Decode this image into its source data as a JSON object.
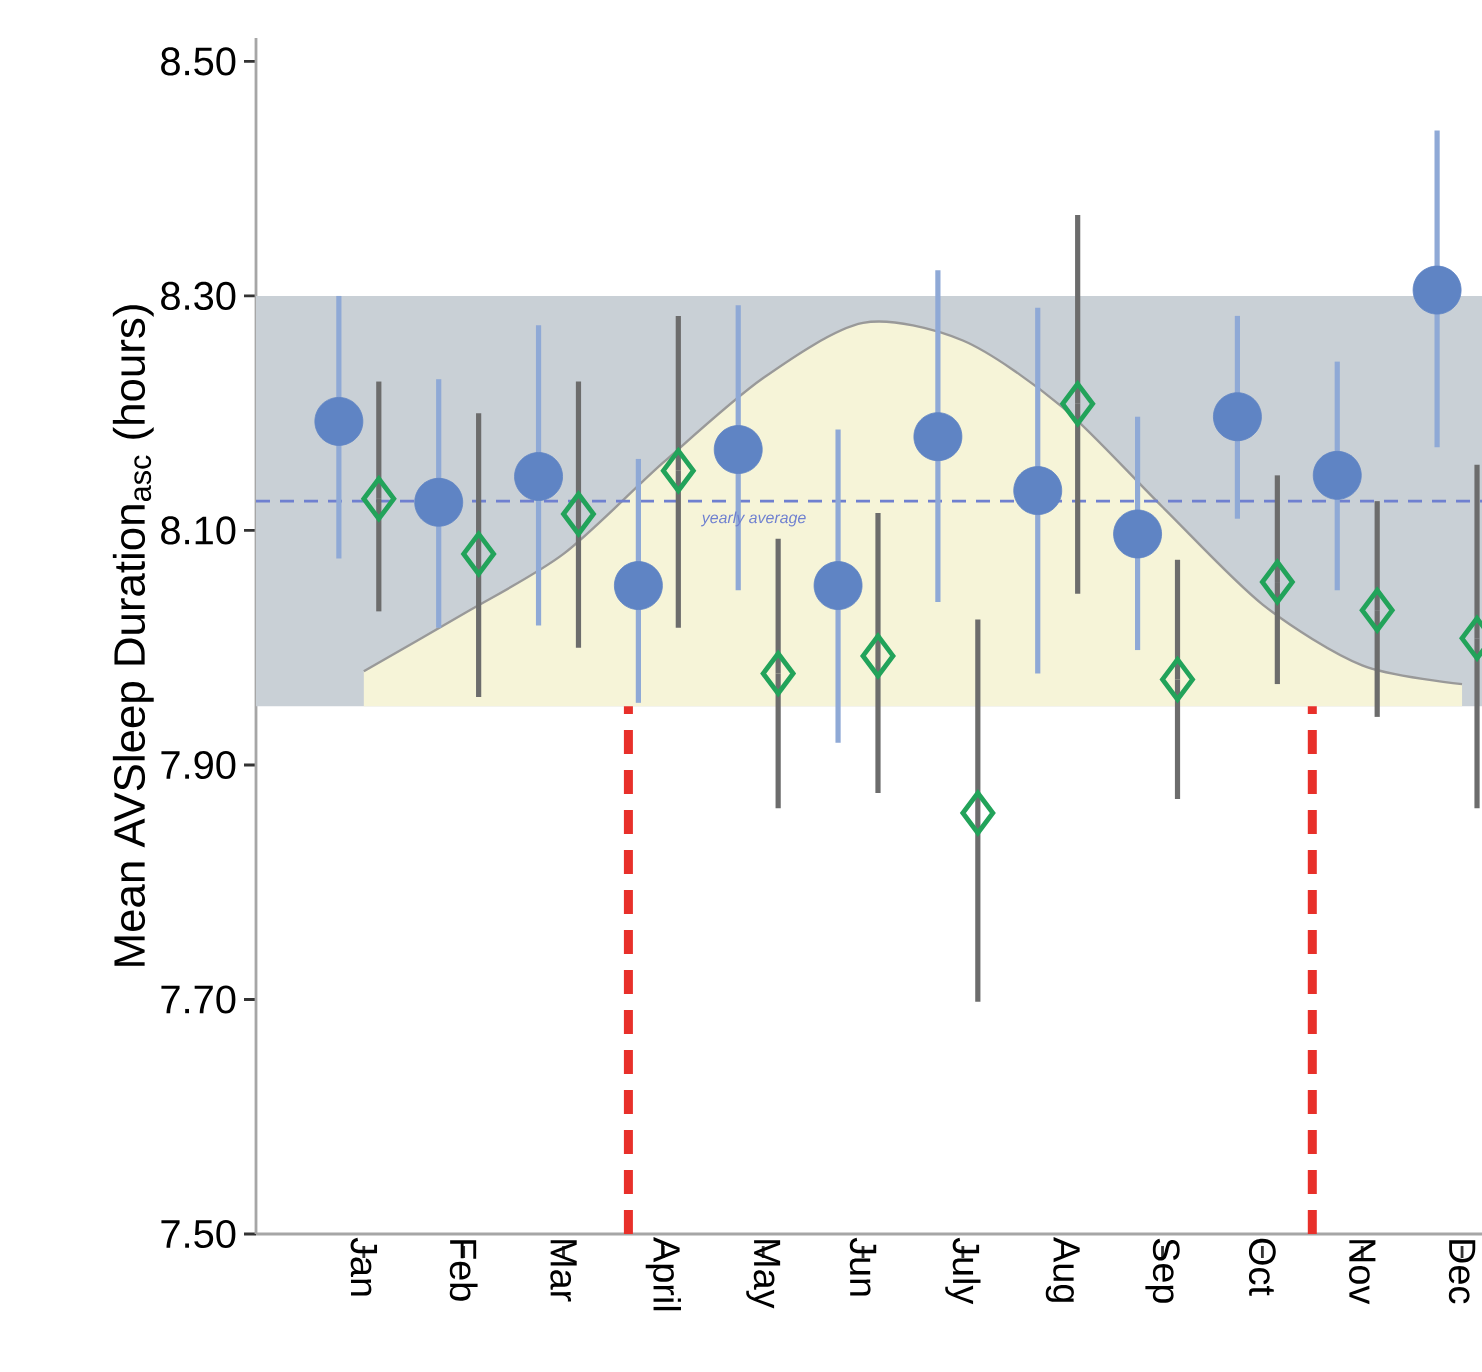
{
  "chart_data": {
    "type": "scatter",
    "ylabel": "Mean AVSleep Duration$_{asc}$ (hours)",
    "categories": [
      "Jan",
      "Feb",
      "Mar",
      "April",
      "May",
      "Jun",
      "July",
      "Aug",
      "Sep",
      "Oct",
      "Nov",
      "Dec"
    ],
    "ylim": [
      7.5,
      8.52
    ],
    "yticks": [
      {
        "value": 7.5,
        "label": "7.50"
      },
      {
        "value": 7.7,
        "label": "7.70"
      },
      {
        "value": 7.9,
        "label": "7.90"
      },
      {
        "value": 8.1,
        "label": "8.10"
      },
      {
        "value": 8.3,
        "label": "8.30"
      },
      {
        "value": 8.5,
        "label": "8.50"
      }
    ],
    "bands": [
      {
        "axis": "y",
        "from": 7.95,
        "to": 8.3,
        "color": "#c9d0d6"
      }
    ],
    "ref_lines": [
      {
        "axis": "y",
        "value": 8.125,
        "label": "yearly average",
        "color": "#6f80d0",
        "line_style": "dashed"
      }
    ],
    "series": [
      {
        "type": "area",
        "color": "#f6f4d8",
        "values": [
          7.98,
          8.029,
          8.08,
          8.158,
          8.23,
          8.277,
          8.262,
          8.205,
          8.12,
          8.037,
          7.985,
          7.969
        ]
      },
      {
        "marker": "circle",
        "color": "#5f84c4",
        "values": [
          8.193,
          8.124,
          8.146,
          8.053,
          8.169,
          8.053,
          8.18,
          8.134,
          8.097,
          8.197,
          8.147,
          8.305
        ],
        "errors": [
          [
            8.076,
            8.3
          ],
          [
            8.017,
            8.229
          ],
          [
            8.019,
            8.275
          ],
          [
            7.953,
            8.161
          ],
          [
            8.049,
            8.292
          ],
          [
            7.919,
            8.186
          ],
          [
            8.039,
            8.322
          ],
          [
            7.978,
            8.29
          ],
          [
            7.998,
            8.197
          ],
          [
            8.11,
            8.283
          ],
          [
            8.049,
            8.244
          ],
          [
            8.171,
            8.441
          ]
        ]
      },
      {
        "marker": "diamond",
        "color": "#22a35a",
        "values": [
          8.127,
          8.08,
          8.114,
          8.151,
          7.978,
          7.993,
          7.859,
          8.208,
          7.973,
          8.056,
          8.032,
          8.008
        ],
        "errors": [
          [
            8.031,
            8.227
          ],
          [
            7.958,
            8.2
          ],
          [
            8.0,
            8.227
          ],
          [
            8.017,
            8.283
          ],
          [
            7.863,
            8.093
          ],
          [
            7.876,
            8.115
          ],
          [
            7.698,
            8.024
          ],
          [
            8.046,
            8.369
          ],
          [
            7.871,
            8.075
          ],
          [
            7.969,
            8.147
          ],
          [
            7.941,
            8.125
          ],
          [
            7.863,
            8.156
          ]
        ]
      }
    ]
  }
}
